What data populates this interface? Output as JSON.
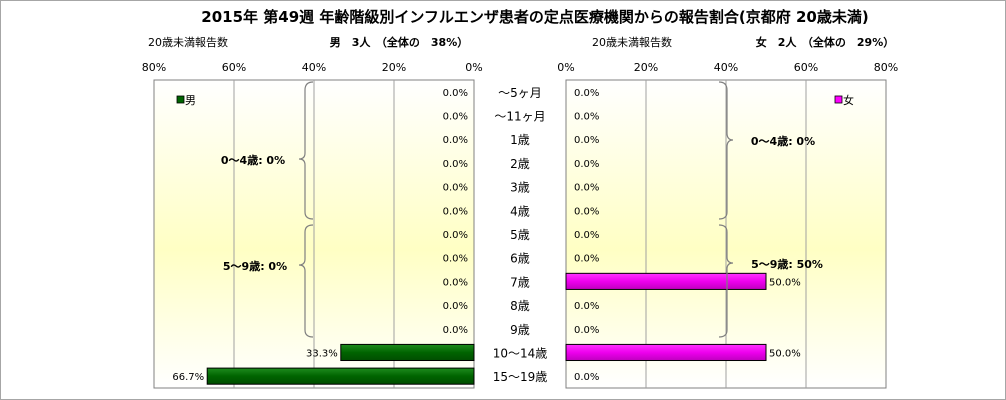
{
  "chart_data": {
    "type": "bar",
    "title": "2015年 第49週 年齢階級別インフルエンザ患者の定点医療機関からの報告割合(京都府 20歳未満)",
    "categories": [
      "～5ヶ月",
      "～11ヶ月",
      "1歳",
      "2歳",
      "3歳",
      "4歳",
      "5歳",
      "6歳",
      "7歳",
      "8歳",
      "9歳",
      "10～14歳",
      "15～19歳"
    ],
    "xlim": [
      0,
      80
    ],
    "ticks": [
      "0%",
      "20%",
      "40%",
      "60%",
      "80%"
    ],
    "tick_values": [
      0,
      20,
      40,
      60,
      80
    ],
    "grid": true,
    "male": {
      "subtitle_left": "20歳未満報告数",
      "subtitle_right": "男　3人　（全体の　38%）",
      "legend": "男",
      "color": "#006400",
      "values": [
        0,
        0,
        0,
        0,
        0,
        0,
        0,
        0,
        0,
        0,
        0,
        33.3,
        66.7
      ],
      "value_labels": [
        "0.0%",
        "0.0%",
        "0.0%",
        "0.0%",
        "0.0%",
        "0.0%",
        "0.0%",
        "0.0%",
        "0.0%",
        "0.0%",
        "0.0%",
        "33.3%",
        "66.7%"
      ],
      "group_labels": [
        "0～4歳: 0%",
        "5～9歳: 0%"
      ]
    },
    "female": {
      "subtitle_left": "20歳未満報告数",
      "subtitle_right": "女　2人　（全体の　29%）",
      "legend": "女",
      "color": "#ff00ff",
      "values": [
        0,
        0,
        0,
        0,
        0,
        0,
        0,
        0,
        50,
        0,
        0,
        50,
        0
      ],
      "value_labels": [
        "0.0%",
        "0.0%",
        "0.0%",
        "0.0%",
        "0.0%",
        "0.0%",
        "0.0%",
        "0.0%",
        "50.0%",
        "0.0%",
        "0.0%",
        "50.0%",
        "0.0%"
      ],
      "group_labels": [
        "0～4歳: 0%",
        "5～9歳: 50%"
      ]
    }
  }
}
